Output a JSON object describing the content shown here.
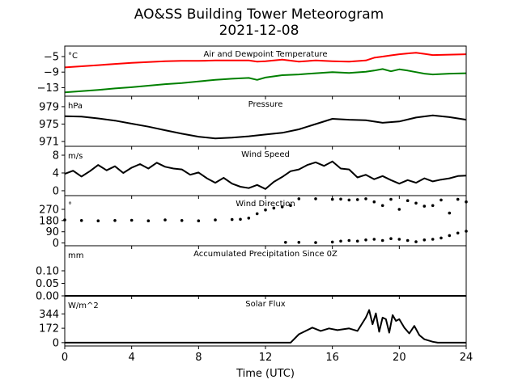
{
  "figure": {
    "title_line1": "AO&SS Building Tower Meteorogram",
    "title_line2": "2021-12-08",
    "xlabel": "Time (UTC)",
    "x_ticks": [
      0,
      4,
      8,
      12,
      16,
      20,
      24
    ]
  },
  "chart_data": [
    {
      "type": "line",
      "title": "Air and Dewpoint Temperature",
      "unit_label": "°C",
      "xlabel": "Time (UTC)",
      "xlim": [
        0,
        24
      ],
      "ylim": [
        -15.2,
        -2.3
      ],
      "y_ticks": [
        -5,
        -9,
        -13
      ],
      "y_tick_labels": [
        "−5",
        "−9",
        "−13"
      ],
      "series": [
        {
          "color": "#ff0000",
          "x": [
            0,
            1,
            2,
            3,
            4,
            5,
            6,
            7,
            8,
            9,
            10,
            11,
            11.5,
            12,
            13,
            14,
            15,
            16,
            17,
            18,
            18.5,
            19,
            19.5,
            20,
            20.5,
            21,
            21.5,
            22,
            23,
            24
          ],
          "y": [
            -7.8,
            -7.5,
            -7.2,
            -6.9,
            -6.6,
            -6.4,
            -6.2,
            -6.1,
            -6.1,
            -6.0,
            -6.0,
            -6.0,
            -6.3,
            -6.2,
            -5.8,
            -6.3,
            -6.0,
            -6.2,
            -6.3,
            -6.0,
            -5.3,
            -5.0,
            -4.7,
            -4.4,
            -4.2,
            -4.0,
            -4.3,
            -4.6,
            -4.5,
            -4.4
          ]
        },
        {
          "color": "#008000",
          "x": [
            0,
            1,
            2,
            3,
            4,
            5,
            6,
            7,
            8,
            9,
            10,
            11,
            11.5,
            12,
            13,
            14,
            15,
            16,
            17,
            18,
            18.5,
            19,
            19.5,
            20,
            20.5,
            21,
            21.5,
            22,
            23,
            24
          ],
          "y": [
            -14.2,
            -13.9,
            -13.6,
            -13.2,
            -12.9,
            -12.5,
            -12.1,
            -11.8,
            -11.4,
            -11.0,
            -10.7,
            -10.5,
            -11.0,
            -10.4,
            -9.8,
            -9.6,
            -9.3,
            -9.0,
            -9.2,
            -8.9,
            -8.6,
            -8.2,
            -8.8,
            -8.3,
            -8.6,
            -9.0,
            -9.4,
            -9.6,
            -9.4,
            -9.3
          ]
        }
      ]
    },
    {
      "type": "line",
      "title": "Pressure",
      "unit_label": "hPa",
      "xlim": [
        0,
        24
      ],
      "ylim": [
        969.9,
        981.4
      ],
      "y_ticks": [
        979,
        975,
        971
      ],
      "series": [
        {
          "color": "#000000",
          "x": [
            0,
            1,
            2,
            3,
            4,
            5,
            6,
            7,
            8,
            9,
            10,
            11,
            12,
            13,
            14,
            15,
            16,
            17,
            18,
            19,
            20,
            21,
            22,
            23,
            24
          ],
          "y": [
            976.8,
            976.7,
            976.3,
            975.8,
            975.1,
            974.4,
            973.6,
            972.8,
            972.1,
            971.7,
            971.9,
            972.2,
            972.6,
            973.0,
            973.8,
            975.0,
            976.2,
            976.0,
            975.9,
            975.3,
            975.6,
            976.5,
            977.0,
            976.6,
            976.0
          ]
        }
      ]
    },
    {
      "type": "line",
      "title": "Wind Speed",
      "unit_label": "m/s",
      "xlim": [
        0,
        24
      ],
      "ylim": [
        -1.1,
        10.0
      ],
      "y_ticks": [
        8,
        4,
        0
      ],
      "series": [
        {
          "color": "#000000",
          "x": [
            0,
            0.5,
            1,
            1.5,
            2,
            2.5,
            3,
            3.5,
            4,
            4.5,
            5,
            5.5,
            6,
            6.5,
            7,
            7.5,
            8,
            8.5,
            9,
            9.5,
            10,
            10.5,
            11,
            11.5,
            12,
            12.5,
            13,
            13.5,
            14,
            14.5,
            15,
            15.5,
            16,
            16.5,
            17,
            17.5,
            18,
            18.5,
            19,
            19.5,
            20,
            20.5,
            21,
            21.5,
            22,
            22.5,
            23,
            23.5,
            24
          ],
          "y": [
            3.8,
            4.5,
            3.2,
            4.4,
            5.8,
            4.6,
            5.5,
            4.0,
            5.2,
            6.0,
            5.0,
            6.3,
            5.4,
            5.0,
            4.8,
            3.6,
            4.1,
            2.8,
            1.8,
            2.9,
            1.6,
            0.9,
            0.6,
            1.3,
            0.4,
            2.0,
            3.1,
            4.4,
            4.8,
            5.8,
            6.4,
            5.6,
            6.6,
            5.0,
            4.8,
            3.0,
            3.6,
            2.6,
            3.3,
            2.4,
            1.6,
            2.4,
            1.8,
            2.8,
            2.1,
            2.5,
            2.8,
            3.3,
            3.4
          ]
        }
      ]
    },
    {
      "type": "scatter",
      "title": "Wind Direction",
      "unit_label": "°",
      "xlim": [
        0,
        24
      ],
      "ylim": [
        -22,
        380
      ],
      "y_ticks": [
        270,
        180,
        90,
        0
      ],
      "series": [
        {
          "color": "#000000",
          "x": [
            0,
            1,
            2,
            3,
            4,
            5,
            6,
            7,
            8,
            9,
            10,
            10.5,
            11,
            11.5,
            12,
            12.5,
            13,
            13.5,
            14,
            15,
            16,
            16.5,
            17,
            17.5,
            18,
            18.5,
            19,
            19.5,
            20,
            20.5,
            21,
            21.5,
            22,
            22.5,
            23,
            23.5,
            24
          ],
          "y": [
            185,
            180,
            178,
            180,
            182,
            178,
            185,
            180,
            178,
            185,
            188,
            190,
            200,
            235,
            265,
            280,
            290,
            300,
            355,
            355,
            350,
            352,
            345,
            348,
            355,
            330,
            300,
            350,
            270,
            340,
            320,
            295,
            300,
            345,
            240,
            350,
            330
          ]
        },
        {
          "color": "#000000",
          "x": [
            13.2,
            14,
            15,
            16,
            16.5,
            17,
            17.5,
            18,
            18.5,
            19,
            19.5,
            20,
            20.5,
            21,
            21.5,
            22,
            22.5,
            23,
            23.5,
            24
          ],
          "y": [
            5,
            5,
            3,
            8,
            15,
            20,
            15,
            25,
            30,
            20,
            35,
            30,
            20,
            10,
            25,
            30,
            40,
            60,
            80,
            95
          ]
        }
      ]
    },
    {
      "type": "line",
      "title": "Accumulated Precipitation Since 0Z",
      "unit_label": "mm",
      "xlim": [
        0,
        24
      ],
      "ylim": [
        0,
        0.2
      ],
      "y_ticks": [
        0.1,
        0.05,
        0.0
      ],
      "y_tick_labels": [
        "0.10",
        "0.05",
        "0.00"
      ],
      "series": [
        {
          "color": "#000000",
          "x": [
            0,
            24
          ],
          "y": [
            0,
            0
          ]
        }
      ]
    },
    {
      "type": "line",
      "title": "Solar Flux",
      "unit_label": "W/m^2",
      "xlim": [
        0,
        24
      ],
      "ylim": [
        -40,
        560
      ],
      "y_ticks": [
        344,
        172,
        0
      ],
      "series": [
        {
          "color": "#000000",
          "x": [
            0,
            13.5,
            14,
            14.8,
            15.3,
            15.8,
            16.3,
            17,
            17.5,
            18,
            18.2,
            18.4,
            18.6,
            18.8,
            19,
            19.2,
            19.4,
            19.6,
            19.8,
            20,
            20.3,
            20.6,
            20.9,
            21.2,
            21.5,
            22,
            22.3,
            24
          ],
          "y": [
            0,
            0,
            100,
            180,
            140,
            170,
            150,
            170,
            140,
            300,
            390,
            220,
            350,
            130,
            300,
            280,
            120,
            330,
            260,
            280,
            180,
            110,
            200,
            90,
            40,
            10,
            0,
            0
          ]
        }
      ]
    }
  ]
}
